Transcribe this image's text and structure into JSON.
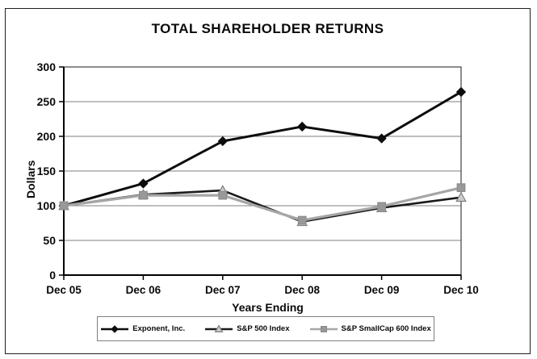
{
  "chart_data": {
    "type": "line",
    "title": "TOTAL SHAREHOLDER RETURNS",
    "xlabel": "Years Ending",
    "ylabel": "Dollars",
    "categories": [
      "Dec 05",
      "Dec 06",
      "Dec 07",
      "Dec 08",
      "Dec 09",
      "Dec 10"
    ],
    "series": [
      {
        "name": "Exponent, Inc.",
        "values": [
          100,
          132,
          193,
          214,
          197,
          264
        ],
        "line_color": "#0d0d0d",
        "line_width": 3,
        "marker": "diamond",
        "marker_fill": "#0d0d0d",
        "marker_stroke": "#0d0d0d"
      },
      {
        "name": "S&P 500 Index",
        "values": [
          100,
          116,
          122,
          77,
          97,
          112
        ],
        "line_color": "#1a1a1a",
        "line_width": 2.6,
        "marker": "triangle",
        "marker_fill": "#cccccc",
        "marker_stroke": "#7f7f7f"
      },
      {
        "name": "S&P SmallCap 600 Index",
        "values": [
          100,
          115,
          115,
          79,
          99,
          126
        ],
        "line_color": "#a6a6a6",
        "line_width": 3.2,
        "marker": "square",
        "marker_fill": "#999999",
        "marker_stroke": "#8c8c8c"
      }
    ],
    "ylim": [
      0,
      300
    ],
    "yticks": [
      0,
      50,
      100,
      150,
      200,
      250,
      300
    ],
    "grid": true,
    "legend_position": "bottom"
  },
  "colors": {
    "background": "#ffffff",
    "grid": "#7f7f7f",
    "plot_frame": "#404040",
    "axis": "#000000",
    "legend_border": "#7f7f7f",
    "text": "#0a0a0a"
  }
}
